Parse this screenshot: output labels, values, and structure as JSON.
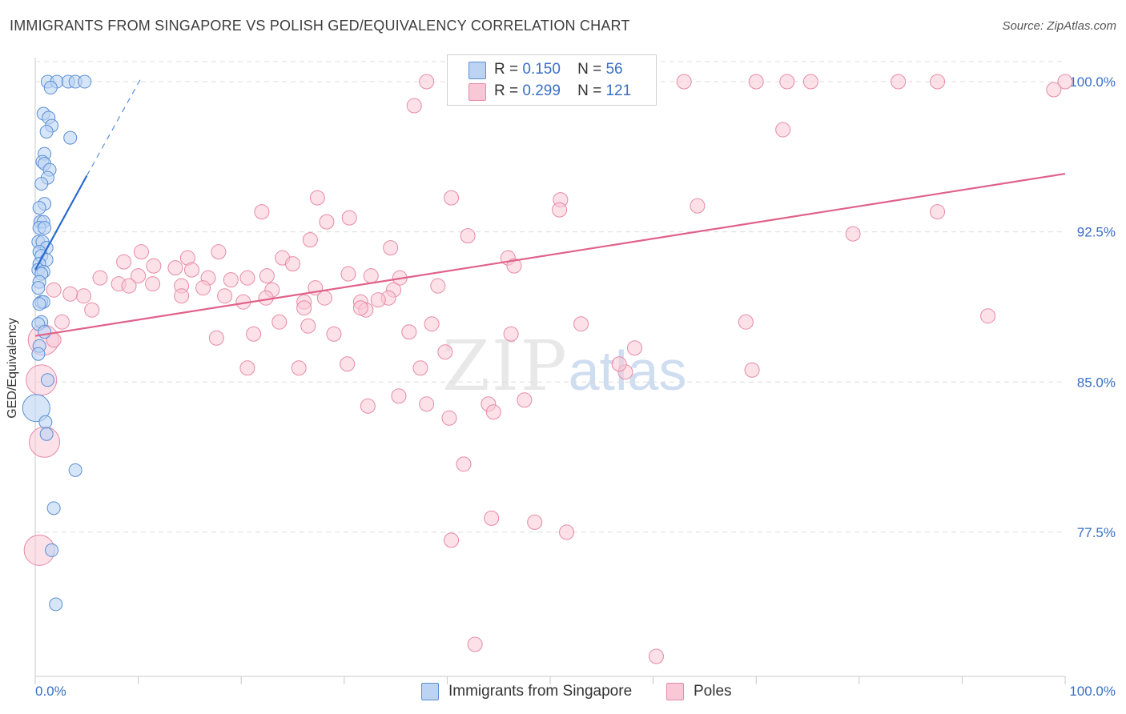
{
  "title": "IMMIGRANTS FROM SINGAPORE VS POLISH GED/EQUIVALENCY CORRELATION CHART",
  "source": "Source: ZipAtlas.com",
  "watermark": {
    "zip": "ZIP",
    "atlas": "atlas"
  },
  "legend_top": {
    "r_label": "R =",
    "n_label": "N =",
    "rows": [
      {
        "r": "0.150",
        "n": "56"
      },
      {
        "r": "0.299",
        "n": "121"
      }
    ]
  },
  "legend_bottom": [
    "Immigrants from Singapore",
    "Poles"
  ],
  "chart_data": {
    "type": "scatter",
    "ylabel": "GED/Equivalency",
    "xlim": [
      0,
      100
    ],
    "ylim": [
      70.3,
      101.2
    ],
    "x_tick_labels": [
      "0.0%",
      "100.0%"
    ],
    "y_tick_labels": [
      "100.0%",
      "92.5%",
      "85.0%",
      "77.5%"
    ],
    "y_ticks": [
      100.0,
      92.5,
      85.0,
      77.5
    ],
    "grid": "horizontal-dashed",
    "colors": {
      "blue_fill": "#bcd3f3",
      "blue_stroke": "#5a8fd6",
      "blue_line": "#2a6bd0",
      "pink_fill": "#f9c8d6",
      "pink_stroke": "#e68aa6",
      "pink_line": "#e0628a",
      "axis_text": "#3a6fc4"
    },
    "series": [
      {
        "name": "Immigrants from Singapore",
        "trend": {
          "x0": 0.0,
          "y0": 90.6,
          "x1": 5.0,
          "y1": 95.3,
          "dash_x1": 10.3,
          "dash_y1": 100.2
        },
        "points": [
          [
            1.2,
            100.0
          ],
          [
            2.1,
            100.0
          ],
          [
            3.2,
            100.0
          ],
          [
            3.9,
            100.0
          ],
          [
            4.8,
            100.0
          ],
          [
            1.5,
            99.7
          ],
          [
            0.8,
            98.4
          ],
          [
            1.3,
            98.2
          ],
          [
            1.6,
            97.8
          ],
          [
            1.1,
            97.5
          ],
          [
            3.4,
            97.2
          ],
          [
            0.9,
            96.4
          ],
          [
            0.7,
            96.0
          ],
          [
            0.9,
            95.9
          ],
          [
            1.4,
            95.6
          ],
          [
            1.2,
            95.2
          ],
          [
            0.6,
            94.9
          ],
          [
            0.9,
            93.9
          ],
          [
            0.4,
            93.7
          ],
          [
            0.5,
            93.0
          ],
          [
            0.8,
            93.0
          ],
          [
            0.4,
            92.7
          ],
          [
            0.9,
            92.7
          ],
          [
            0.3,
            92.0
          ],
          [
            0.7,
            92.0
          ],
          [
            1.1,
            91.7
          ],
          [
            0.4,
            91.5
          ],
          [
            0.6,
            91.3
          ],
          [
            1.1,
            91.1
          ],
          [
            0.4,
            90.9
          ],
          [
            0.3,
            90.6
          ],
          [
            0.8,
            90.5
          ],
          [
            0.6,
            90.4
          ],
          [
            0.4,
            90.0
          ],
          [
            0.3,
            89.7
          ],
          [
            0.6,
            89.0
          ],
          [
            0.8,
            89.0
          ],
          [
            0.4,
            88.9
          ],
          [
            0.6,
            88.0
          ],
          [
            0.3,
            87.9
          ],
          [
            0.9,
            87.5
          ],
          [
            0.4,
            86.8
          ],
          [
            0.3,
            86.4
          ],
          [
            1.2,
            85.1
          ],
          [
            0.1,
            83.7
          ],
          [
            1.0,
            83.0
          ],
          [
            1.1,
            82.4
          ],
          [
            3.9,
            80.6
          ],
          [
            1.8,
            78.7
          ],
          [
            1.6,
            76.6
          ],
          [
            2.0,
            73.9
          ]
        ],
        "big_points": [
          [
            0.1,
            83.7
          ]
        ]
      },
      {
        "name": "Poles",
        "trend": {
          "x0": 0.0,
          "y0": 87.3,
          "x1": 100.0,
          "y1": 95.4
        },
        "points": [
          [
            38.0,
            100.0
          ],
          [
            48.0,
            100.0
          ],
          [
            50.0,
            100.0
          ],
          [
            63.0,
            100.0
          ],
          [
            70.0,
            100.0
          ],
          [
            73.0,
            100.0
          ],
          [
            75.3,
            100.0
          ],
          [
            83.8,
            100.0
          ],
          [
            87.6,
            100.0
          ],
          [
            100.0,
            100.0
          ],
          [
            98.9,
            99.6
          ],
          [
            36.8,
            98.8
          ],
          [
            72.6,
            97.6
          ],
          [
            27.4,
            94.2
          ],
          [
            40.4,
            94.2
          ],
          [
            51.0,
            94.1
          ],
          [
            50.9,
            93.6
          ],
          [
            64.3,
            93.8
          ],
          [
            22.0,
            93.5
          ],
          [
            30.5,
            93.2
          ],
          [
            28.3,
            93.0
          ],
          [
            87.6,
            93.5
          ],
          [
            79.4,
            92.4
          ],
          [
            42.0,
            92.3
          ],
          [
            26.7,
            92.1
          ],
          [
            34.5,
            91.7
          ],
          [
            10.3,
            91.5
          ],
          [
            17.8,
            91.5
          ],
          [
            14.8,
            91.2
          ],
          [
            24.0,
            91.2
          ],
          [
            8.6,
            91.0
          ],
          [
            25.0,
            90.9
          ],
          [
            45.9,
            91.2
          ],
          [
            46.5,
            90.8
          ],
          [
            11.5,
            90.8
          ],
          [
            13.6,
            90.7
          ],
          [
            15.2,
            90.6
          ],
          [
            10.0,
            90.3
          ],
          [
            16.8,
            90.2
          ],
          [
            19.0,
            90.1
          ],
          [
            20.6,
            90.2
          ],
          [
            22.5,
            90.3
          ],
          [
            30.4,
            90.4
          ],
          [
            32.6,
            90.3
          ],
          [
            35.4,
            90.2
          ],
          [
            6.3,
            90.2
          ],
          [
            8.1,
            89.9
          ],
          [
            9.1,
            89.8
          ],
          [
            11.4,
            89.9
          ],
          [
            14.2,
            89.8
          ],
          [
            16.3,
            89.7
          ],
          [
            23.0,
            89.6
          ],
          [
            27.2,
            89.7
          ],
          [
            34.8,
            89.6
          ],
          [
            39.1,
            89.8
          ],
          [
            1.8,
            89.6
          ],
          [
            4.7,
            89.3
          ],
          [
            3.4,
            89.4
          ],
          [
            14.2,
            89.3
          ],
          [
            18.4,
            89.3
          ],
          [
            20.2,
            89.0
          ],
          [
            22.4,
            89.2
          ],
          [
            26.1,
            89.0
          ],
          [
            28.1,
            89.2
          ],
          [
            31.6,
            89.0
          ],
          [
            34.3,
            89.2
          ],
          [
            26.1,
            88.7
          ],
          [
            32.1,
            88.6
          ],
          [
            31.6,
            88.7
          ],
          [
            33.3,
            89.1
          ],
          [
            5.5,
            88.6
          ],
          [
            2.6,
            88.0
          ],
          [
            23.7,
            88.0
          ],
          [
            26.5,
            87.8
          ],
          [
            38.5,
            87.9
          ],
          [
            53.0,
            87.9
          ],
          [
            69.0,
            88.0
          ],
          [
            92.5,
            88.3
          ],
          [
            17.6,
            87.2
          ],
          [
            21.2,
            87.4
          ],
          [
            29.0,
            87.4
          ],
          [
            36.3,
            87.5
          ],
          [
            46.2,
            87.4
          ],
          [
            0.8,
            87.1
          ],
          [
            1.8,
            87.1
          ],
          [
            39.8,
            86.5
          ],
          [
            58.2,
            86.7
          ],
          [
            20.6,
            85.7
          ],
          [
            25.6,
            85.7
          ],
          [
            30.3,
            85.9
          ],
          [
            37.4,
            85.7
          ],
          [
            57.3,
            85.5
          ],
          [
            56.7,
            85.9
          ],
          [
            69.6,
            85.6
          ],
          [
            0.6,
            85.1
          ],
          [
            35.3,
            84.3
          ],
          [
            47.5,
            84.1
          ],
          [
            32.3,
            83.8
          ],
          [
            38.0,
            83.9
          ],
          [
            44.0,
            83.9
          ],
          [
            44.5,
            83.5
          ],
          [
            40.2,
            83.2
          ],
          [
            41.6,
            80.9
          ],
          [
            44.3,
            78.2
          ],
          [
            48.5,
            78.0
          ],
          [
            40.4,
            77.1
          ],
          [
            51.6,
            77.5
          ],
          [
            0.4,
            76.6
          ],
          [
            42.7,
            71.9
          ],
          [
            60.3,
            71.3
          ],
          [
            0.9,
            82.0
          ]
        ],
        "big_points": [
          [
            0.8,
            87.1
          ],
          [
            0.6,
            85.1
          ],
          [
            0.4,
            76.6
          ],
          [
            0.9,
            82.0
          ]
        ]
      }
    ]
  }
}
